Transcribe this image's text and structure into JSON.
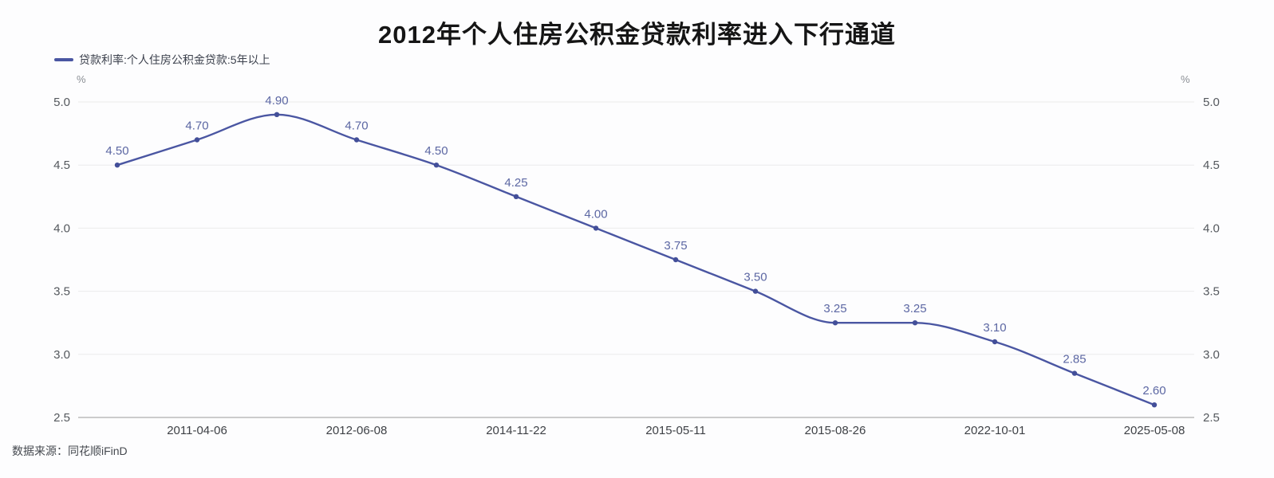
{
  "page": {
    "background": "#fdfdfe"
  },
  "header": {
    "title": "2012年个人住房公积金贷款利率进入下行通道",
    "title_color": "#151515"
  },
  "legend": {
    "label": "贷款利率:个人住房公积金贷款:5年以上",
    "marker_color": "#4A56A2"
  },
  "footer": {
    "source_label": "数据来源：同花顺iFinD"
  },
  "chart_data": {
    "type": "line",
    "title": "2012年个人住房公积金贷款利率进入下行通道",
    "series": [
      {
        "name": "贷款利率:个人住房公积金贷款:5年以上",
        "values": [
          4.5,
          4.7,
          4.9,
          4.7,
          4.5,
          4.25,
          4.0,
          3.75,
          3.5,
          3.25,
          3.25,
          3.1,
          2.85,
          2.6
        ],
        "point_labels": [
          "4.50",
          "4.70",
          "4.90",
          "4.70",
          "4.50",
          "4.25",
          "4.00",
          "3.75",
          "3.50",
          "3.25",
          "3.25",
          "3.10",
          "2.85",
          "2.60"
        ]
      }
    ],
    "x_tick_labels": [
      "2011-04-06",
      "2012-06-08",
      "2014-11-22",
      "2015-05-11",
      "2015-08-26",
      "2022-10-01",
      "2025-05-08"
    ],
    "x_tick_point_indices": [
      1,
      3,
      5,
      7,
      9,
      11,
      13
    ],
    "y_ticks": [
      "5.0",
      "4.5",
      "4.0",
      "3.5",
      "3.0",
      "2.5"
    ],
    "y_unit": "%",
    "ylim": [
      2.5,
      5.0
    ],
    "grid": true,
    "smooth": true,
    "legend_position": "top-left",
    "dual_y_axis": true,
    "colors": {
      "line": "#4A56A2",
      "marker": "#434F99",
      "data_label": "#5C67A3",
      "grid": "#ebebeb",
      "axis_line": "#9a9a9a",
      "y_tick_label": "#54585d",
      "x_tick_label": "#3e4146"
    }
  }
}
